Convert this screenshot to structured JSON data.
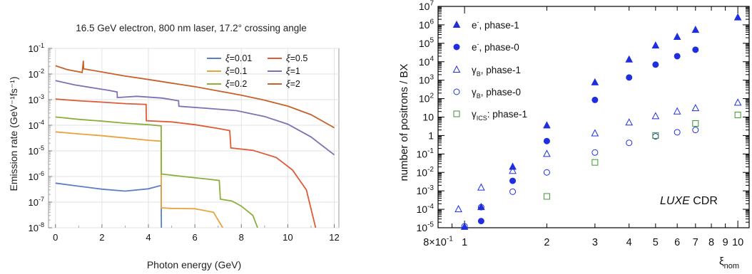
{
  "chart_data": [
    {
      "type": "line",
      "title": "16.5 GeV electron, 800 nm laser, 17.2° crossing angle",
      "xlabel": "Photon energy (GeV)",
      "ylabel": "Emission rate (GeV⁻¹fs⁻¹)",
      "xlim": [
        -0.3,
        12.2
      ],
      "ylim": [
        1e-08,
        0.1
      ],
      "yscale": "log",
      "grid": true,
      "legend_position": "top-right",
      "x_ticks": [
        "0",
        "2",
        "4",
        "6",
        "8",
        "10",
        "12"
      ],
      "y_ticks": [
        "10⁻⁸",
        "10⁻⁷",
        "10⁻⁶",
        "10⁻⁵",
        "10⁻⁴",
        "10⁻³",
        "10⁻²",
        "10⁻¹"
      ],
      "series": [
        {
          "name": "ξ=0.01",
          "color": "#5b7fc4",
          "points": [
            [
              0,
              5.5e-07
            ],
            [
              1,
              4.2e-07
            ],
            [
              2,
              3.2e-07
            ],
            [
              3,
              2.7e-07
            ],
            [
              4,
              3.3e-07
            ],
            [
              4.55,
              4.5e-07
            ],
            [
              4.56,
              1e-08
            ]
          ]
        },
        {
          "name": "ξ=0.1",
          "color": "#e8a33d",
          "points": [
            [
              0,
              5.5e-05
            ],
            [
              1,
              4.6e-05
            ],
            [
              2,
              3.9e-05
            ],
            [
              3,
              3.2e-05
            ],
            [
              4,
              2.6e-05
            ],
            [
              4.55,
              2.4e-05
            ],
            [
              4.56,
              6e-08
            ],
            [
              5,
              5.7e-08
            ],
            [
              6,
              5.5e-08
            ],
            [
              6.8,
              4e-08
            ],
            [
              7.2,
              1e-08
            ]
          ]
        },
        {
          "name": "ξ=0.2",
          "color": "#8ab03a",
          "points": [
            [
              0,
              0.00021
            ],
            [
              1,
              0.00017
            ],
            [
              2,
              0.000145
            ],
            [
              3,
              0.00012
            ],
            [
              4,
              0.000105
            ],
            [
              4.55,
              9.5e-05
            ],
            [
              4.56,
              1.25e-06
            ],
            [
              5.5,
              1e-06
            ],
            [
              6.5,
              8e-07
            ],
            [
              7.05,
              7e-07
            ],
            [
              7.1,
              1.3e-07
            ],
            [
              7.6,
              1.1e-07
            ],
            [
              8,
              7e-08
            ],
            [
              8.5,
              3e-08
            ],
            [
              8.7,
              1e-08
            ]
          ]
        },
        {
          "name": "ξ=0.5",
          "color": "#e05a36",
          "points": [
            [
              0,
              0.00105
            ],
            [
              1,
              0.0009
            ],
            [
              2,
              0.0008
            ],
            [
              3,
              0.0007
            ],
            [
              3.9,
              0.00065
            ],
            [
              3.91,
              0.00015
            ],
            [
              5,
              0.000135
            ],
            [
              6,
              0.000105
            ],
            [
              7,
              7.5e-05
            ],
            [
              7.5,
              6.2e-05
            ],
            [
              7.55,
              1.3e-05
            ],
            [
              8.5,
              1.05e-05
            ],
            [
              9.5,
              5.5e-06
            ],
            [
              10.2,
              1.8e-06
            ],
            [
              10.8,
              3e-07
            ],
            [
              11.2,
              1e-08
            ]
          ]
        },
        {
          "name": "ξ=1",
          "color": "#7b72b5",
          "points": [
            [
              0,
              0.0055
            ],
            [
              0.8,
              0.0038
            ],
            [
              1.6,
              0.0029
            ],
            [
              2.3,
              0.0023
            ],
            [
              2.65,
              0.002
            ],
            [
              2.66,
              0.0012
            ],
            [
              3.5,
              0.00135
            ],
            [
              4.6,
              0.00115
            ],
            [
              5.3,
              0.0009
            ],
            [
              5.31,
              0.00055
            ],
            [
              6.5,
              0.00046
            ],
            [
              7.8,
              0.00037
            ],
            [
              9,
              0.00022
            ],
            [
              10,
              0.00011
            ],
            [
              11,
              3.5e-05
            ],
            [
              12,
              7e-06
            ]
          ]
        },
        {
          "name": "ξ=2",
          "color": "#c7612a",
          "points": [
            [
              0,
              0.021
            ],
            [
              0.5,
              0.015
            ],
            [
              1.15,
              0.0115
            ],
            [
              1.2,
              0.033
            ],
            [
              1.21,
              0.016
            ],
            [
              2,
              0.012
            ],
            [
              3,
              0.0083
            ],
            [
              4,
              0.0061
            ],
            [
              5,
              0.0044
            ],
            [
              6,
              0.0032
            ],
            [
              7,
              0.0022
            ],
            [
              8,
              0.0015
            ],
            [
              9,
              0.00095
            ],
            [
              10,
              0.00056
            ],
            [
              11,
              0.00026
            ],
            [
              12,
              8e-05
            ]
          ]
        }
      ]
    },
    {
      "type": "scatter",
      "xlabel": "ξ_nom",
      "ylabel": "number of positrons / BX",
      "xscale": "log",
      "yscale": "log",
      "xlim": [
        0.8,
        11
      ],
      "ylim": [
        1e-05,
        10000000.0
      ],
      "x_ticks": [
        "8×10⁻¹",
        "1",
        "2",
        "3",
        "4",
        "5",
        "6",
        "7",
        "8",
        "9",
        "10"
      ],
      "y_ticks": [
        "10⁻⁵",
        "10⁻⁴",
        "10⁻³",
        "10⁻²",
        "10⁻¹",
        "1",
        "10",
        "10²",
        "10³",
        "10⁴",
        "10⁵",
        "10⁶",
        "10⁷"
      ],
      "legend_position": "top-left",
      "annotation": {
        "italic": "LUXE",
        "text": "CDR"
      },
      "series": [
        {
          "name": "e⁻, phase-1",
          "marker": "triangle-filled",
          "color": "#1f2fe0",
          "points": [
            [
              1,
              1.1e-05
            ],
            [
              1.15,
              0.00013
            ],
            [
              1.5,
              0.02
            ],
            [
              2,
              3.5
            ],
            [
              3,
              750
            ],
            [
              4,
              13000
            ],
            [
              5,
              75000
            ],
            [
              6,
              220000
            ],
            [
              7,
              530000
            ],
            [
              10,
              2500000
            ]
          ]
        },
        {
          "name": "e⁻, phase-0",
          "marker": "circle-filled",
          "color": "#1f2fe0",
          "points": [
            [
              1.15,
              2.3e-05
            ],
            [
              1.5,
              0.0035
            ],
            [
              2,
              0.5
            ],
            [
              3,
              85
            ],
            [
              4,
              1400
            ],
            [
              5,
              7000
            ],
            [
              6,
              20000
            ],
            [
              7,
              45000
            ]
          ]
        },
        {
          "name": "γB, phase-1",
          "marker": "triangle-open",
          "color": "#1f2fe0",
          "points": [
            [
              0.95,
              0.0001
            ],
            [
              1.15,
              0.0015
            ],
            [
              1.5,
              0.012
            ],
            [
              2,
              0.1
            ],
            [
              3,
              1.3
            ],
            [
              4,
              5
            ],
            [
              5,
              11
            ],
            [
              6,
              20
            ],
            [
              7,
              30
            ],
            [
              10,
              60
            ]
          ]
        },
        {
          "name": "γB, phase-0",
          "marker": "circle-open",
          "color": "#1f2fe0",
          "points": [
            [
              1,
              1.2e-05
            ],
            [
              1.15,
              0.00013
            ],
            [
              1.5,
              0.0009
            ],
            [
              2,
              0.01
            ],
            [
              3,
              0.12
            ],
            [
              4,
              0.4
            ],
            [
              5,
              0.9
            ],
            [
              6,
              1.5
            ],
            [
              7,
              2
            ]
          ]
        },
        {
          "name": "γICS: phase-1",
          "marker": "square-open",
          "color": "#3a9a2a",
          "points": [
            [
              2,
              0.0005
            ],
            [
              3,
              0.035
            ],
            [
              5,
              1
            ],
            [
              7,
              4.5
            ],
            [
              10,
              13
            ]
          ]
        }
      ]
    }
  ]
}
